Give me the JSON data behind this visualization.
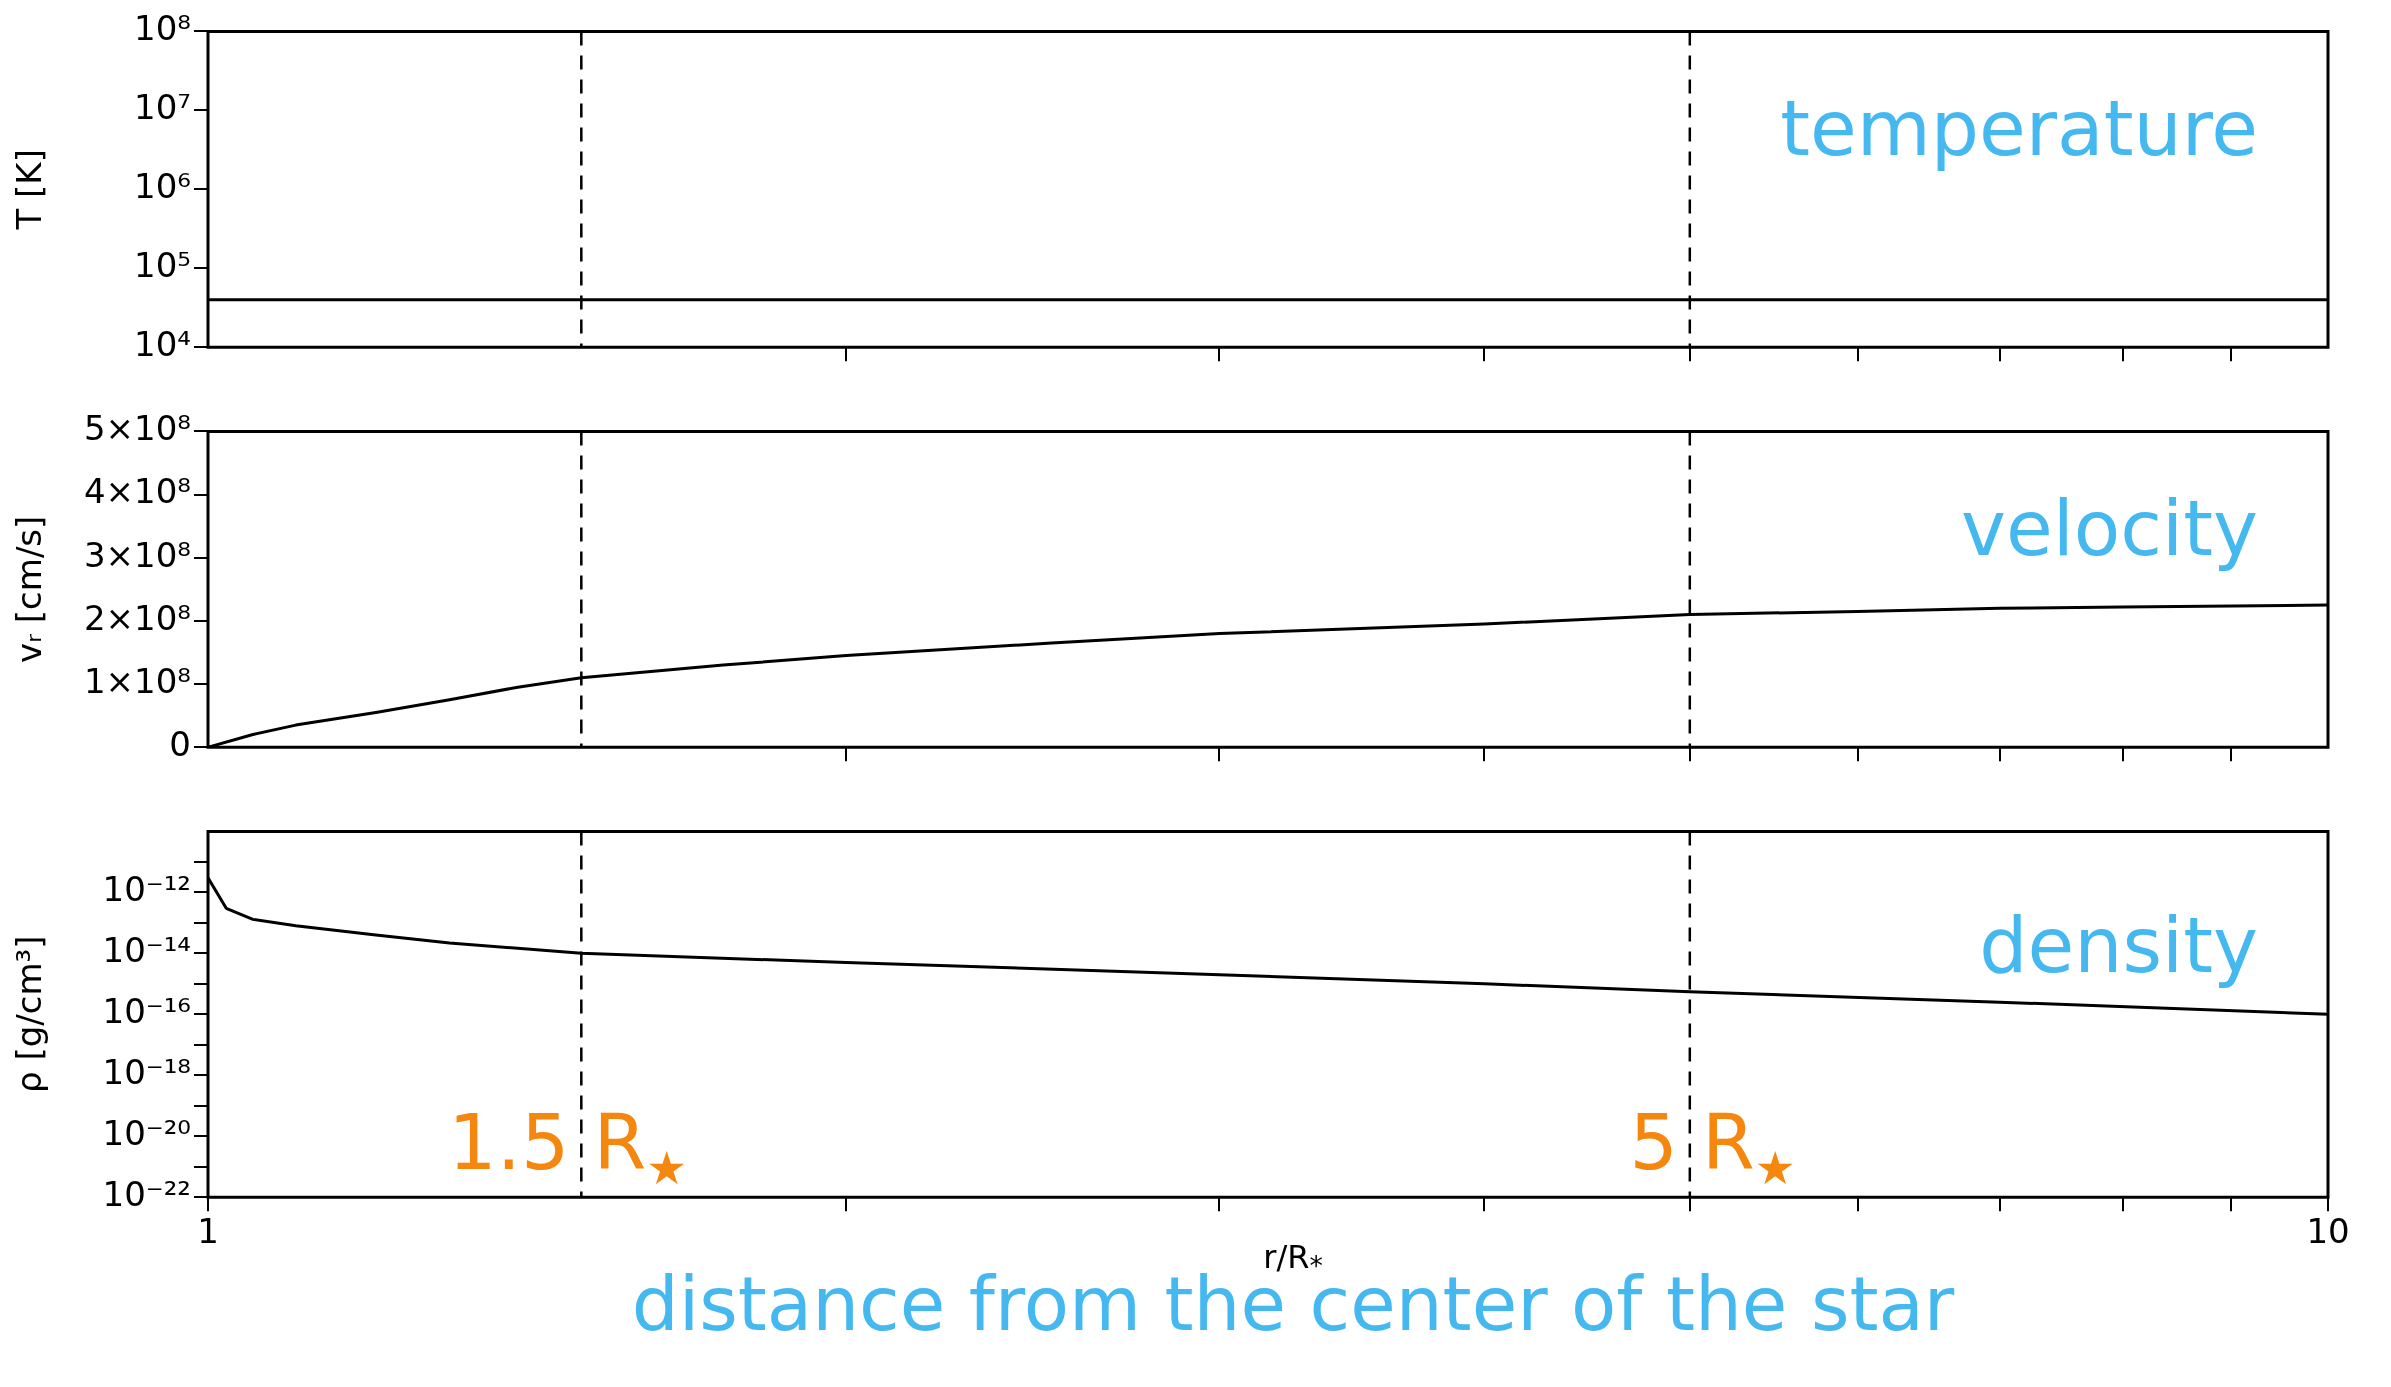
{
  "chart_data": [
    {
      "type": "line",
      "annotations": [
        "temperature"
      ],
      "ylabel": "T [K]",
      "log": "xy",
      "xlim": [
        1,
        10
      ],
      "xticks": [
        {
          "value": 2,
          "label": null
        },
        {
          "value": 3,
          "label": null
        },
        {
          "value": 4,
          "label": null
        },
        {
          "value": 5,
          "label": null
        },
        {
          "value": 6,
          "label": null
        },
        {
          "value": 7,
          "label": null
        },
        {
          "value": 8,
          "label": null
        },
        {
          "value": 9,
          "label": null
        }
      ],
      "ylim": [
        10000,
        100000000
      ],
      "yticks": [
        {
          "value": 10000,
          "label": "10⁴"
        },
        {
          "value": 100000,
          "label": "10⁵"
        },
        {
          "value": 1000000,
          "label": "10⁶"
        },
        {
          "value": 10000000,
          "label": "10⁷"
        },
        {
          "value": 100000000,
          "label": "10⁸"
        }
      ],
      "tick_labels": "y",
      "grid": false,
      "legend": false,
      "line_style": "solid",
      "marker": "none",
      "x": [
        1,
        10
      ],
      "series": [
        {
          "color": "#000000",
          "values": [
            40000,
            40000
          ]
        }
      ],
      "ref_lines": [
        {
          "axis": "x",
          "value": 1.5,
          "color": "#000000",
          "line_style": "dashed"
        },
        {
          "axis": "x",
          "value": 5,
          "color": "#000000",
          "line_style": "dashed"
        }
      ]
    },
    {
      "type": "line",
      "annotations": [
        "velocity"
      ],
      "ylabel": "vᵣ [cm/s]",
      "log": "x",
      "xlim": [
        1,
        10
      ],
      "xticks": [
        {
          "value": 2,
          "label": null
        },
        {
          "value": 3,
          "label": null
        },
        {
          "value": 4,
          "label": null
        },
        {
          "value": 5,
          "label": null
        },
        {
          "value": 6,
          "label": null
        },
        {
          "value": 7,
          "label": null
        },
        {
          "value": 8,
          "label": null
        },
        {
          "value": 9,
          "label": null
        }
      ],
      "ylim": [
        0,
        500000000
      ],
      "yticks": [
        0,
        {
          "value": 100000000,
          "label": "1×10⁸"
        },
        {
          "value": 200000000,
          "label": "2×10⁸"
        },
        {
          "value": 300000000,
          "label": "3×10⁸"
        },
        {
          "value": 400000000,
          "label": "4×10⁸"
        },
        {
          "value": 500000000,
          "label": "5×10⁸"
        }
      ],
      "tick_labels": "y",
      "grid": false,
      "legend": false,
      "line_style": "solid",
      "marker": "none",
      "x": [
        1,
        1.05,
        1.1,
        1.2,
        1.3,
        1.4,
        1.5,
        1.75,
        2,
        2.5,
        3,
        4,
        5,
        6,
        7,
        8,
        10
      ],
      "series": [
        {
          "color": "#000000",
          "values": [
            0,
            20000000,
            35000000,
            55000000,
            75000000,
            95000000,
            110000000,
            130000000,
            145000000,
            165000000,
            180000000,
            195000000,
            210000000,
            215000000,
            220000000,
            222000000,
            225000000
          ]
        }
      ],
      "ref_lines": [
        {
          "axis": "x",
          "value": 1.5,
          "color": "#000000",
          "line_style": "dashed"
        },
        {
          "axis": "x",
          "value": 5,
          "color": "#000000",
          "line_style": "dashed"
        }
      ]
    },
    {
      "type": "line",
      "annotations": [
        "density",
        "distance from the center of the star"
      ],
      "ylabel": "ρ [g/cm³]",
      "xlabel": "r/R$_{*}$",
      "log": "xy",
      "xlim": [
        1,
        10
      ],
      "xticks": [
        1,
        {
          "value": 2,
          "label": null
        },
        {
          "value": 3,
          "label": null
        },
        {
          "value": 4,
          "label": null
        },
        {
          "value": 5,
          "label": null
        },
        {
          "value": 6,
          "label": null
        },
        {
          "value": 7,
          "label": null
        },
        {
          "value": 8,
          "label": null
        },
        {
          "value": 9,
          "label": null
        },
        10
      ],
      "ylim": [
        1e-22,
        1e-10
      ],
      "yticks": [
        {
          "value": 1e-22,
          "label": "10⁻²²"
        },
        {
          "value": 1e-21,
          "label": null
        },
        {
          "value": 1e-20,
          "label": "10⁻²⁰"
        },
        {
          "value": 1e-19,
          "label": null
        },
        {
          "value": 1e-18,
          "label": "10⁻¹⁸"
        },
        {
          "value": 1e-17,
          "label": null
        },
        {
          "value": 1e-16,
          "label": "10⁻¹⁶"
        },
        {
          "value": 1e-15,
          "label": null
        },
        {
          "value": 1e-14,
          "label": "10⁻¹⁴"
        },
        {
          "value": 1e-13,
          "label": null
        },
        {
          "value": 1e-12,
          "label": "10⁻¹²"
        },
        {
          "value": 1e-11,
          "label": null
        }
      ],
      "grid": false,
      "legend": false,
      "line_style": "solid",
      "marker": "none",
      "x": [
        1,
        1.02,
        1.05,
        1.1,
        1.2,
        1.3,
        1.5,
        2,
        3,
        4,
        5,
        7,
        10
      ],
      "series": [
        {
          "color": "#000000",
          "values": [
            3e-12,
            3e-13,
            1.3e-13,
            8e-14,
            4e-14,
            2.2e-14,
            1e-14,
            5e-15,
            2e-15,
            1e-15,
            5.5e-16,
            2.5e-16,
            1e-16
          ]
        }
      ],
      "ref_lines": [
        {
          "axis": "x",
          "value": 1.5,
          "label": "1.5 R$_{★}$",
          "color": "#000000",
          "line_style": "dashed"
        },
        {
          "axis": "x",
          "value": 5,
          "label": "5 R$_{★}$",
          "color": "#000000",
          "line_style": "dashed"
        }
      ]
    }
  ]
}
